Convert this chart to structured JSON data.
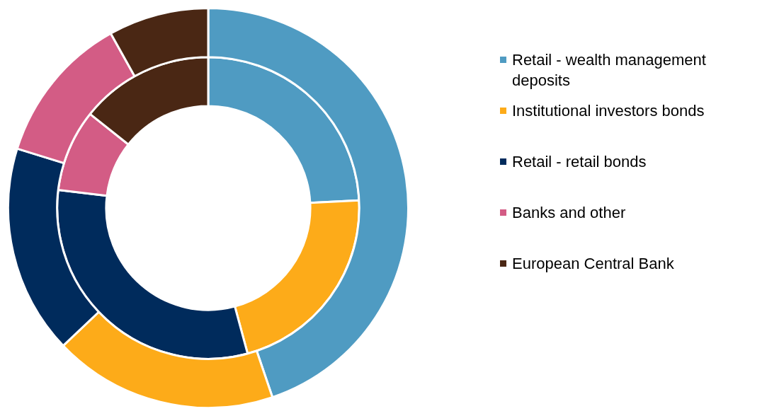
{
  "chart_data": {
    "type": "donut",
    "categories": [
      "Retail - wealth management deposits",
      "Institutional investors bonds",
      "Retail - retail bonds",
      "Banks and other",
      "European Central Bank"
    ],
    "colors": [
      "#4f9bc2",
      "#fdab19",
      "#002b5c",
      "#d35c85",
      "#4a2714"
    ],
    "series": [
      {
        "values": [
          44.8,
          18.1,
          16.9,
          12.1,
          8.1
        ]
      },
      {
        "values": [
          24.2,
          21.6,
          31.1,
          8.8,
          14.3
        ]
      }
    ],
    "legend": "right"
  }
}
